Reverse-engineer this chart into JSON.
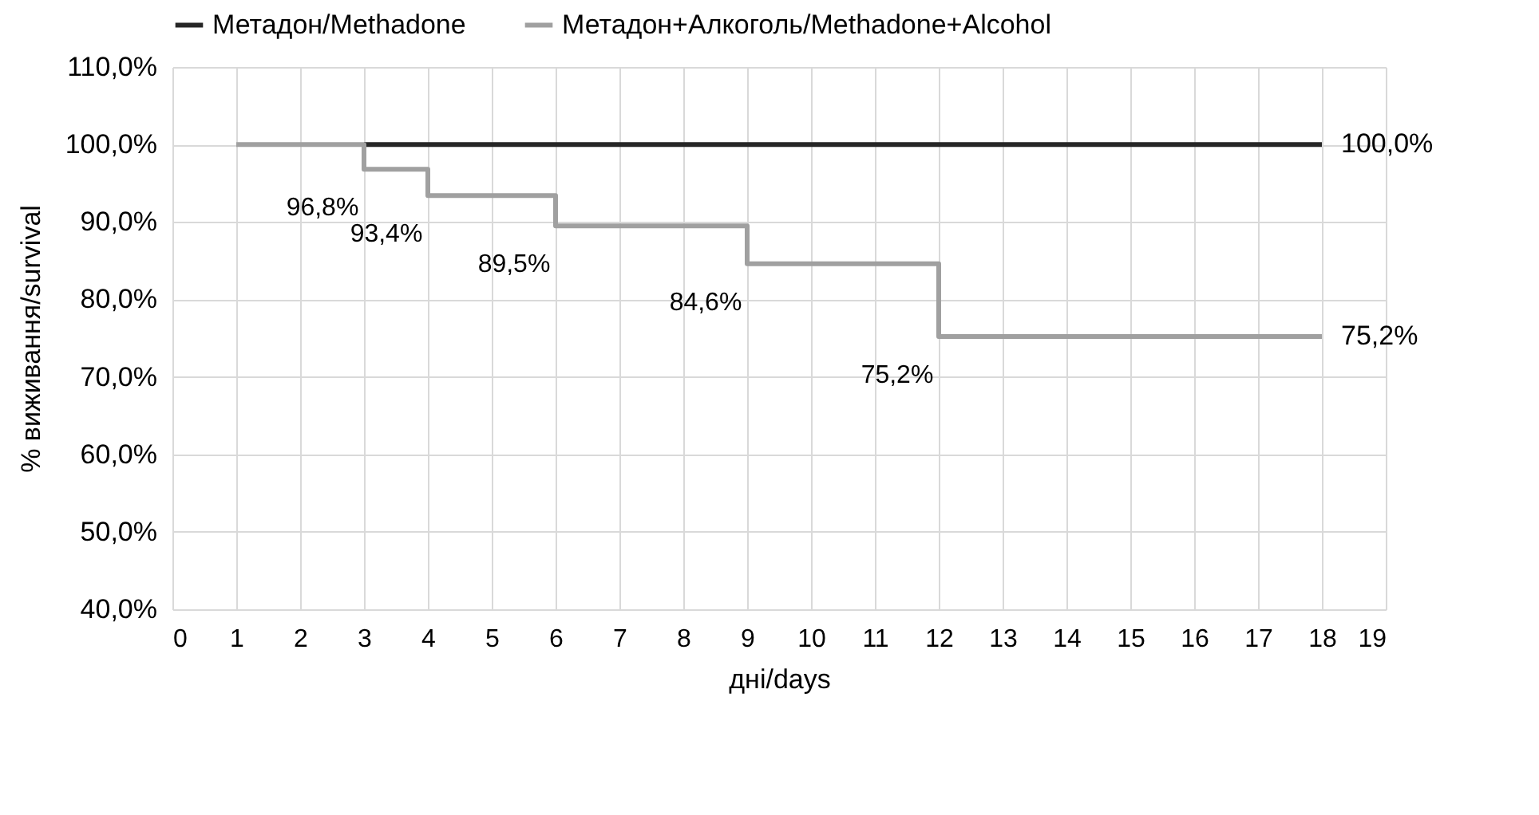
{
  "chart_data": {
    "type": "step",
    "xlabel": "дні/days",
    "ylabel": "% виживання/survival",
    "xlim": [
      0,
      19
    ],
    "xticks": [
      0,
      1,
      2,
      3,
      4,
      5,
      6,
      7,
      8,
      9,
      10,
      11,
      12,
      13,
      14,
      15,
      16,
      17,
      18,
      19
    ],
    "ylim": [
      40,
      110
    ],
    "yticks": [
      {
        "value": 40,
        "label": "40,0%"
      },
      {
        "value": 50,
        "label": "50,0%"
      },
      {
        "value": 60,
        "label": "60,0%"
      },
      {
        "value": 70,
        "label": "70,0%"
      },
      {
        "value": 80,
        "label": "80,0%"
      },
      {
        "value": 90,
        "label": "90,0%"
      },
      {
        "value": 100,
        "label": "100,0%"
      },
      {
        "value": 110,
        "label": "110,0%"
      }
    ],
    "grid": true,
    "legend": "top",
    "series": [
      {
        "name": "Метадон/Methadone",
        "color": "#262626",
        "x": [
          3,
          18
        ],
        "values": [
          100,
          100
        ],
        "value_labels": [
          null,
          "100,0%"
        ]
      },
      {
        "name": "Метадон+Алкоголь/Methadone+Alcohol",
        "color": "#a0a0a0",
        "x": [
          1,
          3,
          4,
          6,
          9,
          12,
          18
        ],
        "values": [
          100,
          96.8,
          93.4,
          89.5,
          84.6,
          75.2,
          75.2
        ],
        "value_labels": [
          null,
          "96,8%",
          "93,4%",
          "89,5%",
          "84,6%",
          "75,2%",
          "75,2%"
        ]
      }
    ]
  }
}
